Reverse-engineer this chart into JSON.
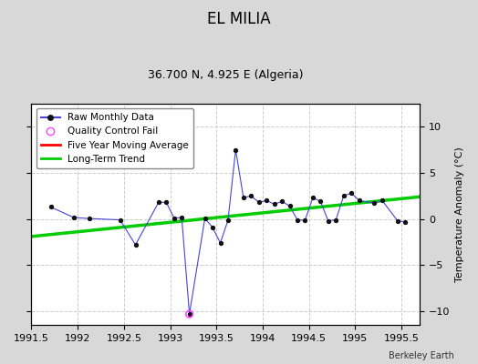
{
  "title": "EL MILIA",
  "subtitle": "36.700 N, 4.925 E (Algeria)",
  "ylabel": "Temperature Anomaly (°C)",
  "watermark": "Berkeley Earth",
  "xlim": [
    1991.5,
    1995.7
  ],
  "ylim": [
    -11.5,
    12.5
  ],
  "yticks": [
    -10,
    -5,
    0,
    5,
    10
  ],
  "xticks": [
    1991.5,
    1992,
    1992.5,
    1993,
    1993.5,
    1994,
    1994.5,
    1995,
    1995.5
  ],
  "xtick_labels": [
    "1991.5",
    "1992",
    "1992.5",
    "1993",
    "1993.5",
    "1994",
    "1994.5",
    "1995",
    "1995.5"
  ],
  "fig_bg_color": "#d8d8d8",
  "plot_bg_color": "#ffffff",
  "raw_data_x": [
    1991.708,
    1991.958,
    1992.125,
    1992.458,
    1992.625,
    1992.875,
    1992.958,
    1993.042,
    1993.125,
    1993.208,
    1993.375,
    1993.458,
    1993.542,
    1993.625,
    1993.708,
    1993.792,
    1993.875,
    1993.958,
    1994.042,
    1994.125,
    1994.208,
    1994.292,
    1994.375,
    1994.458,
    1994.542,
    1994.625,
    1994.708,
    1994.792,
    1994.875,
    1994.958,
    1995.042,
    1995.208,
    1995.292,
    1995.458,
    1995.542
  ],
  "raw_data_y": [
    1.3,
    0.15,
    0.05,
    -0.1,
    -2.8,
    1.8,
    1.8,
    0.1,
    0.15,
    -10.3,
    0.05,
    -0.9,
    -2.6,
    -0.15,
    7.5,
    2.3,
    2.5,
    1.8,
    2.0,
    1.6,
    1.9,
    1.4,
    -0.1,
    -0.15,
    2.3,
    1.9,
    -0.2,
    -0.1,
    2.5,
    2.8,
    2.0,
    1.7,
    2.0,
    -0.2,
    -0.35
  ],
  "qc_fail_x": [
    1993.208
  ],
  "qc_fail_y": [
    -10.3
  ],
  "trend_x": [
    1991.5,
    1995.7
  ],
  "trend_y": [
    -1.9,
    2.4
  ],
  "line_color": "#4444dd",
  "dot_color": "#111111",
  "trend_color": "#00cc00",
  "qc_color": "#ff44ff",
  "ma_color": "#ff0000",
  "grid_color": "#cccccc"
}
